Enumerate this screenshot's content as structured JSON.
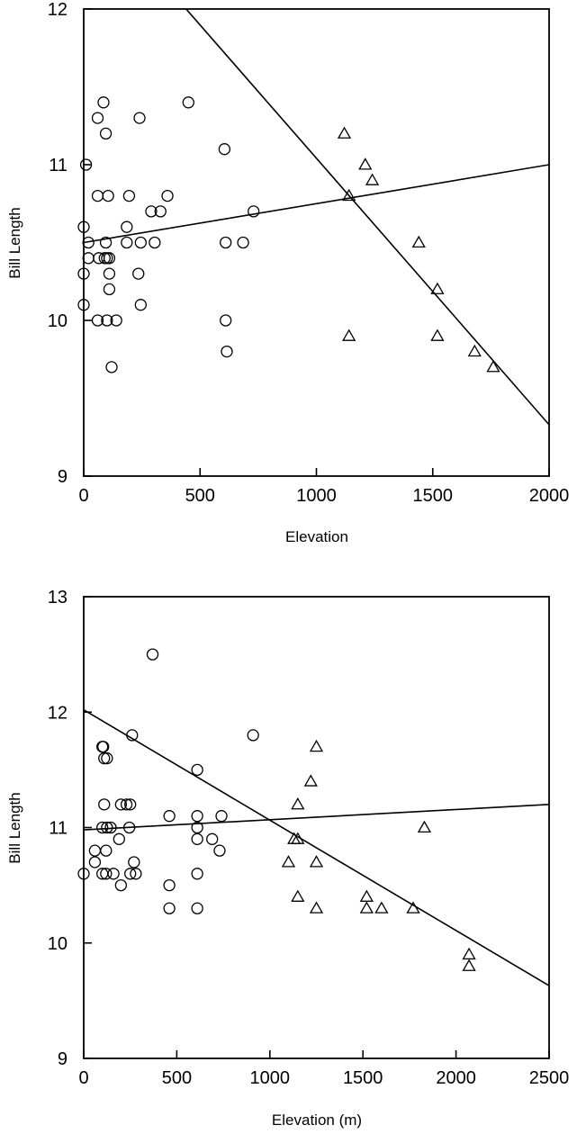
{
  "chart_data": [
    {
      "type": "scatter",
      "xlabel": "Elevation",
      "ylabel": "Bill Length",
      "xlim": [
        0,
        2000
      ],
      "ylim": [
        9,
        12
      ],
      "xticks": [
        0,
        500,
        1000,
        1500,
        2000
      ],
      "yticks": [
        9,
        10,
        11,
        12
      ],
      "grid": false,
      "series": [
        {
          "marker": "circle",
          "points": [
            [
              85,
              11.4
            ],
            [
              60,
              11.3
            ],
            [
              95,
              11.2
            ],
            [
              10,
              11.0
            ],
            [
              240,
              11.3
            ],
            [
              450,
              11.4
            ],
            [
              605,
              11.1
            ],
            [
              60,
              10.8
            ],
            [
              105,
              10.8
            ],
            [
              195,
              10.8
            ],
            [
              360,
              10.8
            ],
            [
              290,
              10.7
            ],
            [
              330,
              10.7
            ],
            [
              730,
              10.7
            ],
            [
              0,
              10.6
            ],
            [
              185,
              10.6
            ],
            [
              20,
              10.5
            ],
            [
              95,
              10.5
            ],
            [
              185,
              10.5
            ],
            [
              245,
              10.5
            ],
            [
              305,
              10.5
            ],
            [
              610,
              10.5
            ],
            [
              685,
              10.5
            ],
            [
              20,
              10.4
            ],
            [
              65,
              10.4
            ],
            [
              90,
              10.4
            ],
            [
              100,
              10.4
            ],
            [
              110,
              10.4
            ],
            [
              0,
              10.3
            ],
            [
              110,
              10.3
            ],
            [
              235,
              10.3
            ],
            [
              110,
              10.2
            ],
            [
              0,
              10.1
            ],
            [
              245,
              10.1
            ],
            [
              60,
              10.0
            ],
            [
              100,
              10.0
            ],
            [
              140,
              10.0
            ],
            [
              610,
              10.0
            ],
            [
              615,
              9.8
            ],
            [
              120,
              9.7
            ]
          ]
        },
        {
          "marker": "triangle",
          "points": [
            [
              1120,
              11.2
            ],
            [
              1210,
              11.0
            ],
            [
              1240,
              10.9
            ],
            [
              1140,
              10.8
            ],
            [
              1440,
              10.5
            ],
            [
              1520,
              10.2
            ],
            [
              1140,
              9.9
            ],
            [
              1520,
              9.9
            ],
            [
              1680,
              9.8
            ],
            [
              1760,
              9.7
            ]
          ]
        }
      ],
      "fit_lines": [
        {
          "from": [
            0,
            10.5
          ],
          "to": [
            2000,
            11.0
          ]
        },
        {
          "from": [
            440,
            12.0
          ],
          "to": [
            2000,
            9.33
          ]
        }
      ]
    },
    {
      "type": "scatter",
      "xlabel": "Elevation (m)",
      "ylabel": "Bill Length",
      "xlim": [
        0,
        2500
      ],
      "ylim": [
        9,
        13
      ],
      "xticks": [
        0,
        500,
        1000,
        1500,
        2000,
        2500
      ],
      "yticks": [
        9,
        10,
        11,
        12,
        13
      ],
      "grid": false,
      "series": [
        {
          "marker": "circle",
          "points": [
            [
              370,
              12.5
            ],
            [
              260,
              11.8
            ],
            [
              910,
              11.8
            ],
            [
              100,
              11.7
            ],
            [
              105,
              11.7
            ],
            [
              110,
              11.6
            ],
            [
              125,
              11.6
            ],
            [
              610,
              11.5
            ],
            [
              110,
              11.2
            ],
            [
              200,
              11.2
            ],
            [
              230,
              11.2
            ],
            [
              250,
              11.2
            ],
            [
              460,
              11.1
            ],
            [
              610,
              11.1
            ],
            [
              740,
              11.1
            ],
            [
              100,
              11.0
            ],
            [
              125,
              11.0
            ],
            [
              145,
              11.0
            ],
            [
              245,
              11.0
            ],
            [
              610,
              11.0
            ],
            [
              190,
              10.9
            ],
            [
              610,
              10.9
            ],
            [
              690,
              10.9
            ],
            [
              60,
              10.8
            ],
            [
              120,
              10.8
            ],
            [
              730,
              10.8
            ],
            [
              60,
              10.7
            ],
            [
              270,
              10.7
            ],
            [
              0,
              10.6
            ],
            [
              100,
              10.6
            ],
            [
              120,
              10.6
            ],
            [
              160,
              10.6
            ],
            [
              250,
              10.6
            ],
            [
              280,
              10.6
            ],
            [
              610,
              10.6
            ],
            [
              200,
              10.5
            ],
            [
              460,
              10.5
            ],
            [
              460,
              10.3
            ],
            [
              610,
              10.3
            ]
          ]
        },
        {
          "marker": "triangle",
          "points": [
            [
              1250,
              11.7
            ],
            [
              1220,
              11.4
            ],
            [
              1150,
              11.2
            ],
            [
              1830,
              11.0
            ],
            [
              1130,
              10.9
            ],
            [
              1150,
              10.9
            ],
            [
              1100,
              10.7
            ],
            [
              1250,
              10.7
            ],
            [
              1150,
              10.4
            ],
            [
              1520,
              10.4
            ],
            [
              1250,
              10.3
            ],
            [
              1520,
              10.3
            ],
            [
              1600,
              10.3
            ],
            [
              1770,
              10.3
            ],
            [
              2070,
              9.9
            ],
            [
              2070,
              9.8
            ]
          ]
        }
      ],
      "fit_lines": [
        {
          "from": [
            0,
            10.98
          ],
          "to": [
            2500,
            11.2
          ]
        },
        {
          "from": [
            0,
            12.02
          ],
          "to": [
            2500,
            9.63
          ]
        }
      ]
    }
  ]
}
